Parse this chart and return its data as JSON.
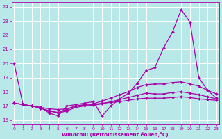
{
  "background_color": "#b8e8e8",
  "grid_color": "#a0d0d0",
  "line_color": "#aa00aa",
  "marker_color": "#aa00aa",
  "xlabel": "Windchill (Refroidissement éolien,°C)",
  "xlabel_color": "#aa00aa",
  "tick_color": "#aa00aa",
  "ylim": [
    15.7,
    24.3
  ],
  "xlim": [
    -0.3,
    23.3
  ],
  "lines": [
    {
      "x": [
        0,
        1,
        2,
        3,
        4,
        5,
        6,
        7,
        8,
        9,
        10,
        11,
        12,
        13,
        14,
        15,
        16,
        17,
        18,
        19,
        20,
        21,
        22,
        23
      ],
      "y": [
        20.0,
        17.1,
        17.0,
        16.9,
        16.5,
        16.3,
        17.0,
        17.1,
        17.2,
        17.3,
        16.3,
        17.0,
        17.5,
        17.9,
        18.6,
        19.5,
        19.7,
        21.1,
        22.2,
        23.8,
        22.9,
        19.0,
        18.1,
        17.55
      ]
    },
    {
      "x": [
        0,
        1,
        2,
        3,
        4,
        5,
        6,
        7,
        8,
        9,
        10,
        11,
        12,
        13,
        14,
        15,
        16,
        17,
        18,
        19,
        20,
        21,
        22,
        23
      ],
      "y": [
        17.2,
        17.1,
        17.0,
        16.85,
        16.65,
        16.55,
        16.75,
        17.0,
        17.1,
        17.15,
        17.35,
        17.55,
        17.8,
        18.0,
        18.3,
        18.5,
        18.55,
        18.55,
        18.65,
        18.7,
        18.55,
        18.4,
        18.1,
        17.85
      ]
    },
    {
      "x": [
        0,
        1,
        2,
        3,
        4,
        5,
        6,
        7,
        8,
        9,
        10,
        11,
        12,
        13,
        14,
        15,
        16,
        17,
        18,
        19,
        20,
        21,
        22,
        23
      ],
      "y": [
        17.2,
        17.1,
        17.0,
        16.85,
        16.65,
        16.5,
        16.65,
        16.9,
        17.0,
        17.05,
        17.15,
        17.3,
        17.45,
        17.6,
        17.75,
        17.9,
        17.85,
        17.85,
        17.95,
        18.0,
        17.9,
        17.8,
        17.65,
        17.5
      ]
    },
    {
      "x": [
        0,
        1,
        2,
        3,
        4,
        5,
        6,
        7,
        8,
        9,
        10,
        11,
        12,
        13,
        14,
        15,
        16,
        17,
        18,
        19,
        20,
        21,
        22,
        23
      ],
      "y": [
        17.2,
        17.1,
        17.0,
        16.9,
        16.8,
        16.75,
        16.8,
        17.0,
        17.05,
        17.1,
        17.2,
        17.25,
        17.3,
        17.4,
        17.5,
        17.55,
        17.55,
        17.55,
        17.6,
        17.65,
        17.6,
        17.5,
        17.45,
        17.4
      ]
    }
  ],
  "yticks": [
    16,
    17,
    18,
    19,
    20,
    21,
    22,
    23,
    24
  ],
  "xticks": [
    0,
    1,
    2,
    3,
    4,
    5,
    6,
    7,
    8,
    9,
    10,
    11,
    12,
    13,
    14,
    15,
    16,
    17,
    18,
    19,
    20,
    21,
    22,
    23
  ]
}
